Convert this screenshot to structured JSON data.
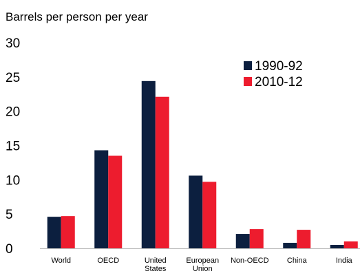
{
  "chart_data": {
    "type": "bar",
    "title": "",
    "ylabel": "Barrels per person per year",
    "xlabel": "",
    "ylim": [
      0,
      30
    ],
    "yticks": [
      0,
      5,
      10,
      15,
      20,
      25,
      30
    ],
    "grid": false,
    "legend_position": "top-right",
    "categories": [
      [
        "World"
      ],
      [
        "OECD"
      ],
      [
        "United",
        "States"
      ],
      [
        "European",
        "Union"
      ],
      [
        "Non-OECD"
      ],
      [
        "China"
      ],
      [
        "India"
      ]
    ],
    "series": [
      {
        "name": "1990-92",
        "color": "#0c1f3f",
        "values": [
          4.6,
          14.3,
          24.4,
          10.6,
          2.1,
          0.8,
          0.5
        ]
      },
      {
        "name": "2010-12",
        "color": "#ed1c2e",
        "values": [
          4.7,
          13.5,
          22.1,
          9.7,
          2.8,
          2.7,
          1.0
        ]
      }
    ]
  }
}
